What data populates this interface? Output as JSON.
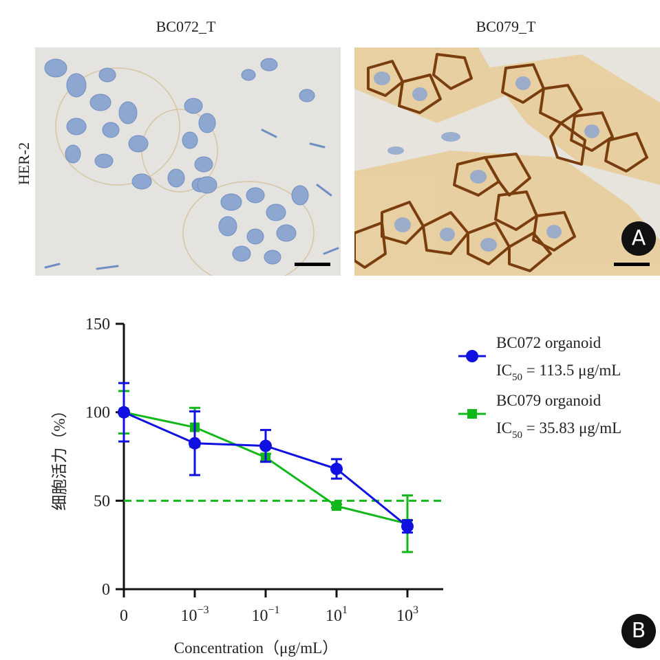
{
  "panelA": {
    "col_titles": [
      "BC072_T",
      "BC079_T"
    ],
    "row_label": "HER-2",
    "badge": "A"
  },
  "panelB": {
    "badge": "B"
  },
  "colors": {
    "blue_series": "#1010e0",
    "green_series": "#12b81a",
    "reference_line": "#12b81a"
  },
  "chart_data": {
    "type": "line",
    "title": "",
    "xlabel": "Concentration（μg/mL）",
    "ylabel": "细胞活力（%）",
    "ylim": [
      0,
      150
    ],
    "y_ticks": [
      0,
      50,
      100,
      150
    ],
    "x_ticks": [
      {
        "base": "0",
        "exp": ""
      },
      {
        "base": "10",
        "exp": "−3"
      },
      {
        "base": "10",
        "exp": "−1"
      },
      {
        "base": "10",
        "exp": "1"
      },
      {
        "base": "10",
        "exp": "3"
      }
    ],
    "x_values": [
      0,
      0.001,
      0.1,
      10,
      1000
    ],
    "reference_line": {
      "y": 50,
      "style": "dashed"
    },
    "series": [
      {
        "name": "BC072 organoid",
        "ic50_label": "IC",
        "ic50_sub": "50",
        "ic50_value": " = 113.5 μg/mL",
        "marker": "circle",
        "values": [
          100,
          82.5,
          81,
          68,
          35.5
        ],
        "errors": [
          16.5,
          18,
          9,
          5.5,
          3.5
        ]
      },
      {
        "name": "BC079 organoid",
        "ic50_label": "IC",
        "ic50_sub": "50",
        "ic50_value": " = 35.83 μg/mL",
        "marker": "square",
        "values": [
          100,
          91.5,
          74.5,
          47,
          37
        ],
        "errors": [
          12,
          11,
          2,
          1,
          16
        ]
      }
    ],
    "legend_position": "right"
  }
}
